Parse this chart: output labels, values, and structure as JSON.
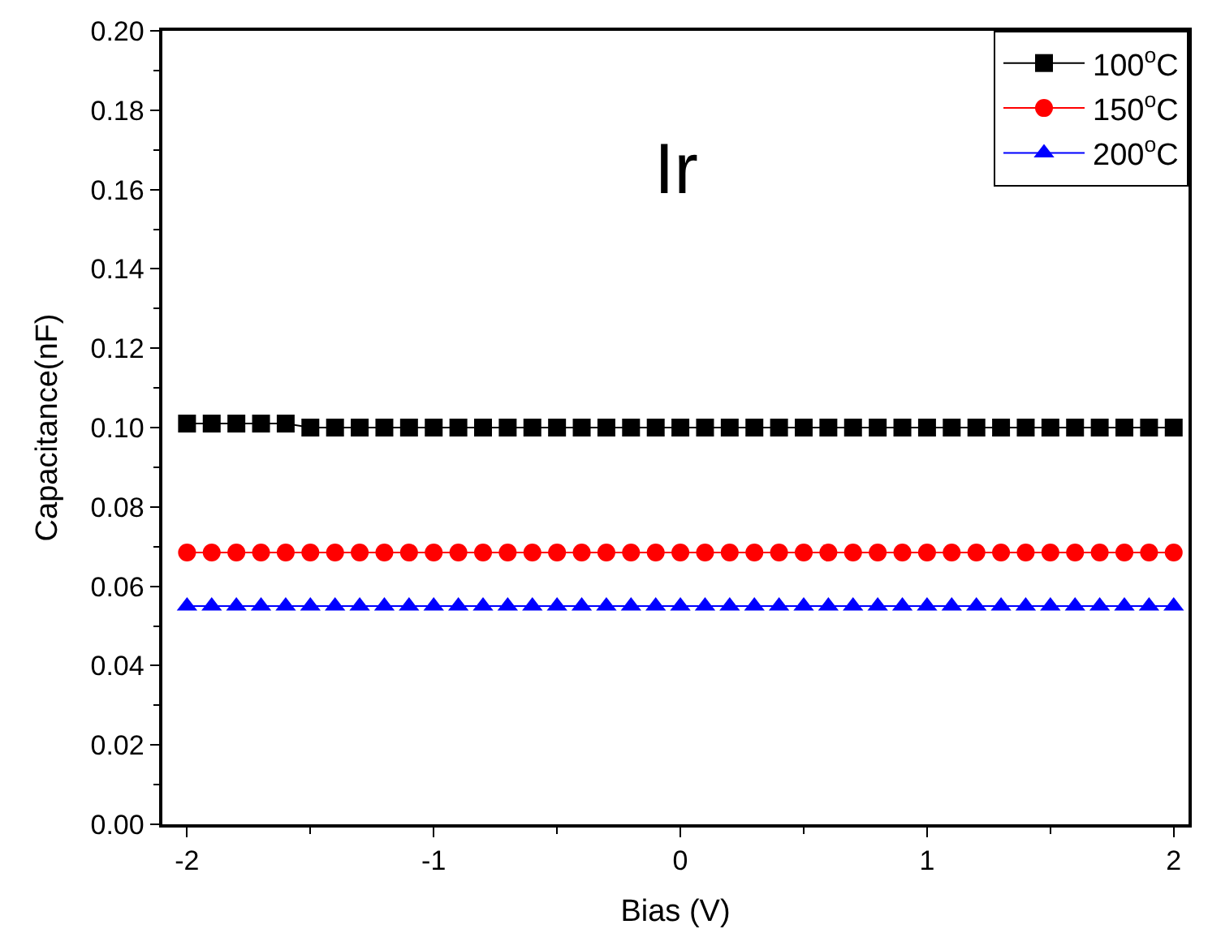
{
  "chart_data": {
    "type": "line",
    "title": "Ir",
    "xlabel": "Bias (V)",
    "ylabel": "Capacitance(nF)",
    "x": [
      -2.0,
      -1.9,
      -1.8,
      -1.7,
      -1.6,
      -1.5,
      -1.4,
      -1.3,
      -1.2,
      -1.1,
      -1.0,
      -0.9,
      -0.8,
      -0.7,
      -0.6,
      -0.5,
      -0.4,
      -0.3,
      -0.2,
      -0.1,
      0.0,
      0.1,
      0.2,
      0.3,
      0.4,
      0.5,
      0.6,
      0.7,
      0.8,
      0.9,
      1.0,
      1.1,
      1.2,
      1.3,
      1.4,
      1.5,
      1.6,
      1.7,
      1.8,
      1.9,
      2.0
    ],
    "series": [
      {
        "name": "100$^{o}$C",
        "color": "#000000",
        "marker": "square",
        "values": [
          0.101,
          0.101,
          0.101,
          0.101,
          0.101,
          0.1,
          0.1,
          0.1,
          0.1,
          0.1,
          0.1,
          0.1,
          0.1,
          0.1,
          0.1,
          0.1,
          0.1,
          0.1,
          0.1,
          0.1,
          0.1,
          0.1,
          0.1,
          0.1,
          0.1,
          0.1,
          0.1,
          0.1,
          0.1,
          0.1,
          0.1,
          0.1,
          0.1,
          0.1,
          0.1,
          0.1,
          0.1,
          0.1,
          0.1,
          0.1,
          0.1
        ]
      },
      {
        "name": "150$^{o}$C",
        "color": "#ff0000",
        "marker": "circle",
        "values": [
          0.0685,
          0.0685,
          0.0685,
          0.0685,
          0.0685,
          0.0685,
          0.0685,
          0.0685,
          0.0685,
          0.0685,
          0.0685,
          0.0685,
          0.0685,
          0.0685,
          0.0685,
          0.0685,
          0.0685,
          0.0685,
          0.0685,
          0.0685,
          0.0685,
          0.0685,
          0.0685,
          0.0685,
          0.0685,
          0.0685,
          0.0685,
          0.0685,
          0.0685,
          0.0685,
          0.0685,
          0.0685,
          0.0685,
          0.0685,
          0.0685,
          0.0685,
          0.0685,
          0.0685,
          0.0685,
          0.0685,
          0.0685
        ]
      },
      {
        "name": "200$^{o}$C",
        "color": "#0000ff",
        "marker": "triangle",
        "values": [
          0.055,
          0.055,
          0.055,
          0.055,
          0.055,
          0.055,
          0.055,
          0.055,
          0.055,
          0.055,
          0.055,
          0.055,
          0.055,
          0.055,
          0.055,
          0.055,
          0.055,
          0.055,
          0.055,
          0.055,
          0.055,
          0.055,
          0.055,
          0.055,
          0.055,
          0.055,
          0.055,
          0.055,
          0.055,
          0.055,
          0.055,
          0.055,
          0.055,
          0.055,
          0.055,
          0.055,
          0.055,
          0.055,
          0.055,
          0.055,
          0.055
        ]
      }
    ],
    "xlim": [
      -2.1,
      2.06
    ],
    "xticks": [
      -2,
      {
        "value": -1.5,
        "label": null
      },
      -1,
      {
        "value": -0.5,
        "label": null
      },
      0,
      {
        "value": 0.5,
        "label": null
      },
      1,
      {
        "value": 1.5,
        "label": null
      },
      2
    ],
    "ylim": [
      0,
      0.2
    ],
    "yticks": [
      {
        "value": 0,
        "label": "0.00"
      },
      {
        "value": 0.01,
        "label": null
      },
      {
        "value": 0.02,
        "label": "0.02"
      },
      {
        "value": 0.03,
        "label": null
      },
      {
        "value": 0.04,
        "label": "0.04"
      },
      {
        "value": 0.05,
        "label": null
      },
      {
        "value": 0.06,
        "label": "0.06"
      },
      {
        "value": 0.07,
        "label": null
      },
      {
        "value": 0.08,
        "label": "0.08"
      },
      {
        "value": 0.09,
        "label": null
      },
      {
        "value": 0.1,
        "label": "0.10"
      },
      {
        "value": 0.11,
        "label": null
      },
      {
        "value": 0.12,
        "label": "0.12"
      },
      {
        "value": 0.13,
        "label": null
      },
      {
        "value": 0.14,
        "label": "0.14"
      },
      {
        "value": 0.15,
        "label": null
      },
      {
        "value": 0.16,
        "label": "0.16"
      },
      {
        "value": 0.17,
        "label": null
      },
      {
        "value": 0.18,
        "label": "0.18"
      },
      {
        "value": 0.19,
        "label": null
      },
      {
        "value": 0.2,
        "label": "0.20"
      }
    ],
    "legend": "top right",
    "line_style": "solid"
  }
}
